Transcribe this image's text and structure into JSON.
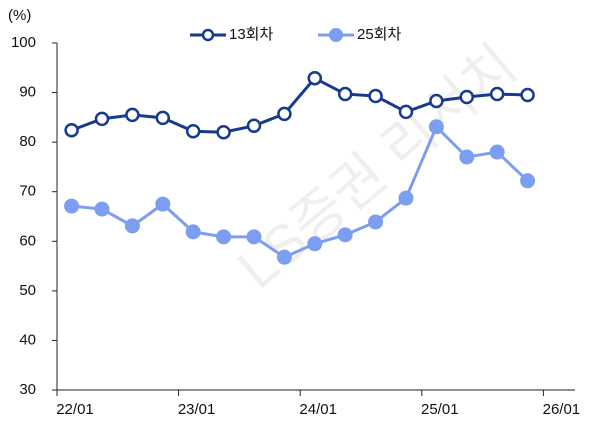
{
  "chart_data": {
    "type": "line",
    "y_label": "(%)",
    "watermark": "LS증권 리서치",
    "x": [
      2022.12,
      2022.37,
      2022.62,
      2022.87,
      2023.12,
      2023.37,
      2023.62,
      2023.87,
      2024.12,
      2024.37,
      2024.62,
      2024.87,
      2025.12,
      2025.37,
      2025.62,
      2025.87
    ],
    "series": [
      {
        "name": "13회차",
        "color": "#173a8f",
        "marker": "hollow",
        "values": [
          82.4,
          84.7,
          85.5,
          84.9,
          82.2,
          82.0,
          83.3,
          85.7,
          92.9,
          89.7,
          89.3,
          86.1,
          88.3,
          89.1,
          89.7,
          89.5
        ]
      },
      {
        "name": "25회차",
        "color": "#7b9ef0",
        "marker": "filled",
        "values": [
          67.1,
          66.5,
          63.1,
          67.5,
          61.9,
          60.9,
          60.9,
          56.8,
          59.5,
          61.3,
          63.9,
          68.7,
          83.1,
          77.0,
          78.0,
          72.2
        ]
      }
    ],
    "xlim": [
      2022,
      2026.26
    ],
    "xticks": [
      {
        "value": 2022,
        "label": "22/01"
      },
      {
        "value": 2023,
        "label": "23/01"
      },
      {
        "value": 2024,
        "label": "24/01"
      },
      {
        "value": 2025,
        "label": "25/01"
      },
      {
        "value": 2026,
        "label": "26/01"
      }
    ],
    "ylim": [
      30,
      100
    ],
    "yticks": [
      30,
      40,
      50,
      60,
      70,
      80,
      90,
      100
    ],
    "grid": false,
    "legend": "top"
  }
}
